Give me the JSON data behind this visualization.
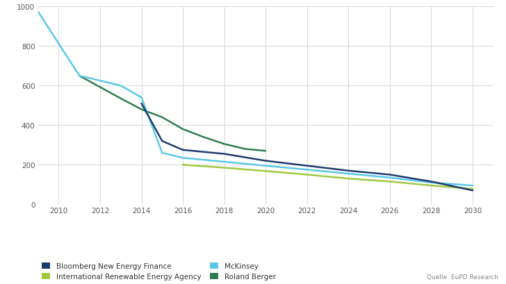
{
  "bloomberg": {
    "x": [
      2014,
      2015,
      2016,
      2017,
      2018,
      2020,
      2022,
      2024,
      2026,
      2028,
      2030
    ],
    "y": [
      510,
      320,
      275,
      265,
      255,
      220,
      195,
      170,
      150,
      115,
      70
    ],
    "color": "#1e3a6e",
    "label": "Bloomberg New Energy Finance",
    "linewidth": 1.8
  },
  "mckinsey": {
    "x": [
      2009,
      2011,
      2013,
      2014,
      2015,
      2016,
      2017,
      2018,
      2020,
      2022,
      2024,
      2026,
      2028,
      2030
    ],
    "y": [
      975,
      650,
      600,
      540,
      260,
      235,
      225,
      215,
      195,
      175,
      155,
      135,
      110,
      95
    ],
    "color": "#5bc8e8",
    "label": "McKinsey",
    "linewidth": 1.8
  },
  "irena": {
    "x": [
      2016,
      2018,
      2020,
      2022,
      2024,
      2026,
      2028,
      2030
    ],
    "y": [
      200,
      185,
      168,
      150,
      130,
      115,
      95,
      78
    ],
    "color": "#a0c840",
    "label": "International Renewable Energy Agency",
    "linewidth": 1.8
  },
  "roland_berger": {
    "x": [
      2011,
      2013,
      2014,
      2015,
      2016,
      2017,
      2018,
      2019,
      2020
    ],
    "y": [
      650,
      535,
      480,
      440,
      380,
      340,
      305,
      280,
      270
    ],
    "color": "#2e7d52",
    "label": "Roland Berger",
    "linewidth": 1.8
  },
  "xlim": [
    2009,
    2031
  ],
  "ylim": [
    0,
    1000
  ],
  "xticks": [
    2010,
    2012,
    2014,
    2016,
    2018,
    2020,
    2022,
    2024,
    2026,
    2028,
    2030
  ],
  "yticks": [
    0,
    200,
    400,
    600,
    800,
    1000
  ],
  "grid_color": "#d8d8d8",
  "background_color": "#ffffff",
  "source_text": "Quelle: EuPD Research"
}
